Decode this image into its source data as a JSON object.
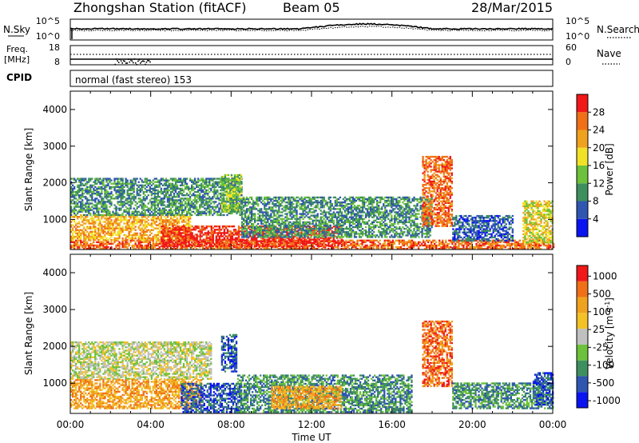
{
  "header": {
    "station": "Zhongshan Station (fitACF)",
    "beam": "Beam 05",
    "date": "28/Mar/2015",
    "mode_label": "normal (fast stereo) 153"
  },
  "strip_labels": {
    "nsky": "N.Sky",
    "nsearch": "N.Search",
    "freq_line1": "Freq.",
    "freq_line2": "[MHz]",
    "nave": "Nave",
    "cpid": "CPID"
  },
  "noise_axis": {
    "left_ticks": [
      "10^5",
      "10^0"
    ],
    "right_ticks": [
      "10^5",
      "10^0"
    ]
  },
  "freq_axis": {
    "left_ticks": [
      "18",
      "8"
    ],
    "right_ticks": [
      "60",
      "0"
    ]
  },
  "chart_data": [
    {
      "type": "heatmap",
      "name": "power",
      "ylabel": "Slant Range [km]",
      "ylim": [
        180,
        4500
      ],
      "yticks": [
        "1000",
        "2000",
        "3000",
        "4000"
      ],
      "xlim": [
        0,
        24
      ],
      "colorbar": {
        "label": "Power [dB]",
        "ticks": [
          "4",
          "8",
          "12",
          "16",
          "20",
          "24",
          "28"
        ],
        "colors": [
          "#0a14f0",
          "#2f56b0",
          "#3e8f5e",
          "#6cc23a",
          "#f2e227",
          "#f0a21f",
          "#f07018",
          "#f01818"
        ]
      },
      "regions": [
        {
          "t0": 0.0,
          "t1": 24.0,
          "r0": 180,
          "r1": 420,
          "level": 6
        },
        {
          "t0": 0.0,
          "t1": 6.0,
          "r0": 420,
          "r1": 1100,
          "level": 5
        },
        {
          "t0": 0.0,
          "t1": 8.5,
          "r0": 1100,
          "r1": 2100,
          "level": 2
        },
        {
          "t0": 4.5,
          "t1": 13.5,
          "r0": 250,
          "r1": 800,
          "level": 7
        },
        {
          "t0": 7.5,
          "t1": 8.5,
          "r0": 1200,
          "r1": 2200,
          "level": 3
        },
        {
          "t0": 8.5,
          "t1": 18.0,
          "r0": 500,
          "r1": 1600,
          "level": 2
        },
        {
          "t0": 17.5,
          "t1": 19.0,
          "r0": 800,
          "r1": 2700,
          "level": 6
        },
        {
          "t0": 19.0,
          "t1": 22.0,
          "r0": 400,
          "r1": 1100,
          "level": 1
        },
        {
          "t0": 22.5,
          "t1": 24.0,
          "r0": 350,
          "r1": 1500,
          "level": 4
        }
      ]
    },
    {
      "type": "heatmap",
      "name": "velocity",
      "ylabel": "Slant Range [km]",
      "ylim": [
        180,
        4500
      ],
      "yticks": [
        "1000",
        "2000",
        "3000",
        "4000"
      ],
      "xlim": [
        0,
        24
      ],
      "xticks": [
        "00:00",
        "04:00",
        "08:00",
        "12:00",
        "16:00",
        "20:00",
        "00:00"
      ],
      "xlabel": "Time UT",
      "colorbar": {
        "label": "Velocity [m s^-1]",
        "ticks": [
          "1000",
          "500",
          "100",
          "25",
          "-25",
          "-100",
          "-500",
          "-1000"
        ],
        "colors": [
          "#0a14f0",
          "#2f56b0",
          "#3e8f5e",
          "#6cc23a",
          "#c0c0c0",
          "#f2c227",
          "#f0a21f",
          "#f07018",
          "#f01818"
        ]
      },
      "regions": [
        {
          "t0": 0.0,
          "t1": 7.0,
          "r0": 1100,
          "r1": 2100,
          "level": 4
        },
        {
          "t0": 0.0,
          "t1": 6.5,
          "r0": 300,
          "r1": 1100,
          "level": 6
        },
        {
          "t0": 5.5,
          "t1": 8.5,
          "r0": 200,
          "r1": 1000,
          "level": 1
        },
        {
          "t0": 7.5,
          "t1": 8.3,
          "r0": 1300,
          "r1": 2300,
          "level": 1
        },
        {
          "t0": 8.3,
          "t1": 17.0,
          "r0": 200,
          "r1": 1200,
          "level": 2
        },
        {
          "t0": 10.0,
          "t1": 13.5,
          "r0": 300,
          "r1": 900,
          "level": 6
        },
        {
          "t0": 17.5,
          "t1": 19.0,
          "r0": 900,
          "r1": 2700,
          "level": 7
        },
        {
          "t0": 19.0,
          "t1": 24.0,
          "r0": 300,
          "r1": 1000,
          "level": 2
        },
        {
          "t0": 23.0,
          "t1": 24.0,
          "r0": 400,
          "r1": 1300,
          "level": 1
        }
      ]
    }
  ]
}
